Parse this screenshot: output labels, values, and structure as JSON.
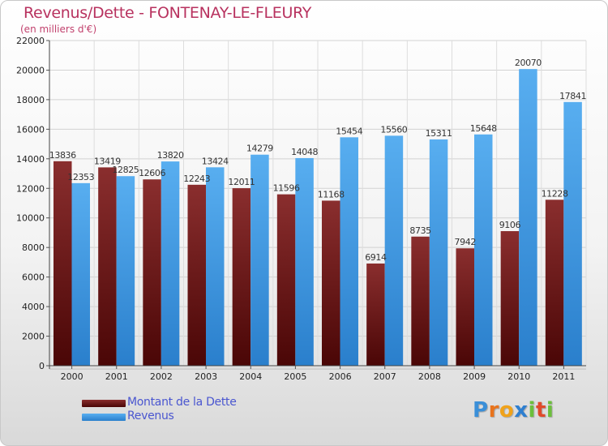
{
  "chart_data": {
    "type": "bar",
    "title": "Revenus/Dette - FONTENAY-LE-FLEURY",
    "subtitle": "(en milliers d'€)",
    "categories": [
      "2000",
      "2001",
      "2002",
      "2003",
      "2004",
      "2005",
      "2006",
      "2007",
      "2008",
      "2009",
      "2010",
      "2011"
    ],
    "series": [
      {
        "name": "Montant de la Dette",
        "color": "#7a1a1a",
        "values": [
          13836,
          13419,
          12606,
          12243,
          12011,
          11596,
          11168,
          6914,
          8735,
          7942,
          9106,
          11228
        ],
        "labels": [
          "13836",
          "13419",
          "12606",
          "12243",
          "12011",
          "11596",
          "11168",
          "6914",
          "8735",
          "7942",
          "9106",
          "11228"
        ]
      },
      {
        "name": "Revenus",
        "color": "#3f9be3",
        "values": [
          12353,
          12825,
          13820,
          13424,
          14279,
          14048,
          15454,
          15560,
          15311,
          15648,
          20070,
          17841
        ],
        "labels": [
          "12353",
          "12825",
          "13820",
          "13424",
          "14279",
          "14048",
          "15454",
          "15560",
          "15311",
          "15648",
          "20070",
          "17841"
        ]
      }
    ],
    "ylim": [
      0,
      22000
    ],
    "yticks": [
      0,
      2000,
      4000,
      6000,
      8000,
      10000,
      12000,
      14000,
      16000,
      18000,
      20000,
      22000
    ],
    "grid": true,
    "legend_position": "bottom-left"
  },
  "legend": {
    "debt_label": "Montant de la Dette",
    "revenue_label": "Revenus"
  },
  "logo": {
    "letters": [
      "P",
      "r",
      "o",
      "x",
      "i",
      "t",
      "i"
    ],
    "colors": [
      "#3a8fd8",
      "#e8731c",
      "#f0a21a",
      "#2e7fd0",
      "#6cbf3c",
      "#e04a2a",
      "#6cbf3c"
    ]
  }
}
